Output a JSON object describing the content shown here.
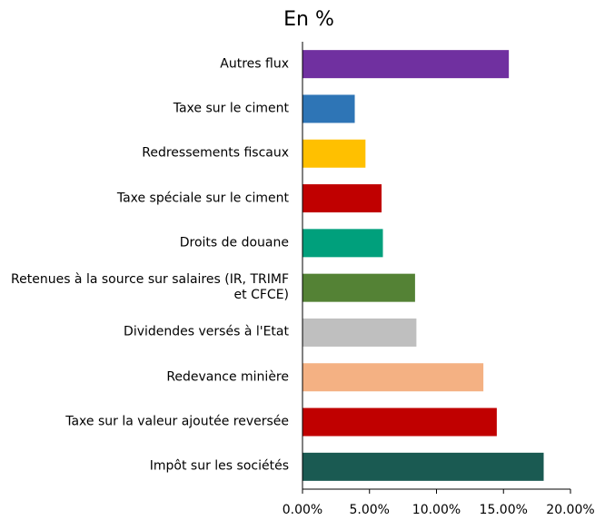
{
  "chart_data": {
    "type": "barh",
    "title": "En %",
    "categories": [
      "Autres flux",
      "Taxe sur le ciment",
      "Redressements fiscaux",
      "Taxe spéciale sur le ciment",
      "Droits de douane",
      "Retenues à la source sur salaires (IR, TRIMF et CFCE)",
      "Dividendes versés à l'Etat",
      "Redevance minière",
      "Taxe sur la valeur ajoutée reversée",
      "Impôt sur les sociétés"
    ],
    "values": [
      15.4,
      3.9,
      4.7,
      5.9,
      6.0,
      8.4,
      8.5,
      13.5,
      14.5,
      18.0
    ],
    "colors": [
      "#7030a0",
      "#2e75b6",
      "#ffc000",
      "#c00000",
      "#00a07c",
      "#548235",
      "#bfbfbf",
      "#f4b183",
      "#c00000",
      "#1a5a52"
    ],
    "xlim": [
      0,
      20
    ],
    "xticks": [
      {
        "value": 0,
        "label": "0.00%"
      },
      {
        "value": 5,
        "label": "5.00%"
      },
      {
        "value": 10,
        "label": "10.00%"
      },
      {
        "value": 15,
        "label": "15.00%"
      },
      {
        "value": 20,
        "label": "20.00%"
      }
    ]
  }
}
